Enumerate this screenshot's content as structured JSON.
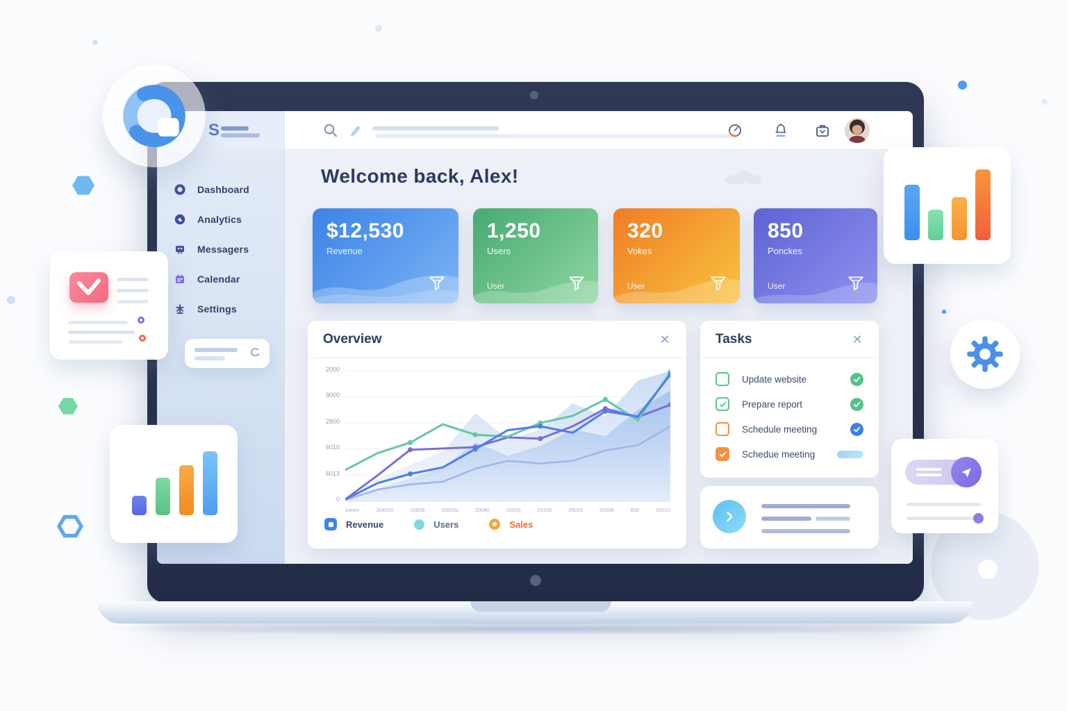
{
  "topbar": {
    "logo_text": "S"
  },
  "sidebar": {
    "items": [
      {
        "label": "Dashboard"
      },
      {
        "label": "Analytics"
      },
      {
        "label": "Messagers"
      },
      {
        "label": "Calendar"
      },
      {
        "label": "Settings"
      }
    ]
  },
  "main": {
    "heading": "Welcome back, Alex!"
  },
  "stats": [
    {
      "value": "$12,530",
      "label": "Revenue",
      "footer": "",
      "bg": "linear-gradient(135deg,#3d83e6 0%,#7ab4f5 100%)"
    },
    {
      "value": "1,250",
      "label": "Users",
      "footer": "User",
      "bg": "linear-gradient(135deg,#47aa71 0%,#8fd6a0 100%)"
    },
    {
      "value": "320",
      "label": "Vokes",
      "footer": "User",
      "bg": "linear-gradient(135deg,#f07c27 0%,#f8c43e 100%)"
    },
    {
      "value": "850",
      "label": "Ponckes",
      "footer": "User",
      "bg": "linear-gradient(135deg,#5f63d3 0%,#8e92ef 100%)"
    }
  ],
  "overview": {
    "title": "Overview",
    "close_icon": "✕",
    "legend": [
      {
        "label": "Revenue",
        "color": "#3d86ea",
        "text": "#39466b"
      },
      {
        "label": "Users",
        "color": "#7fd8dc",
        "text": "#5d6b84"
      },
      {
        "label": "Sales",
        "color": "#f5a63a",
        "text": "#f2693c"
      }
    ]
  },
  "chart_data": {
    "type": "line",
    "title": "Overview",
    "xlabel": "",
    "ylabel": "",
    "ylim": [
      0,
      2000
    ],
    "grid": true,
    "legend_position": "bottom",
    "y_ticks": [
      "2000",
      "9000",
      "2800",
      "6010",
      "6013",
      "0"
    ],
    "x_labels": [
      "2anov",
      "204000",
      "20008",
      "20010s",
      "20080",
      "20010",
      "20100",
      "20019",
      "20008",
      "600",
      "20010"
    ],
    "areas": [
      {
        "name": "background-area",
        "values": [
          0,
          350,
          560,
          760,
          1350,
          950,
          1100,
          1500,
          1300,
          1850,
          2000
        ]
      },
      {
        "name": "foreground-area",
        "values": [
          0,
          200,
          350,
          520,
          900,
          700,
          850,
          1100,
          1000,
          1400,
          1700
        ]
      }
    ],
    "series": [
      {
        "name": "Trend",
        "color": "#9fb4ea",
        "width": 2.5,
        "markers": false,
        "values": [
          20,
          180,
          260,
          300,
          500,
          620,
          580,
          620,
          780,
          860,
          1150
        ]
      },
      {
        "name": "Sales",
        "color": "#7a6fd8",
        "width": 3,
        "markers": true,
        "values": [
          30,
          400,
          790,
          810,
          830,
          980,
          960,
          1150,
          1420,
          1290,
          1480
        ]
      },
      {
        "name": "Users",
        "color": "#63c9a0",
        "width": 3,
        "markers": true,
        "values": [
          480,
          740,
          900,
          1180,
          1020,
          990,
          1200,
          1310,
          1560,
          1240,
          1980
        ]
      },
      {
        "name": "Revenue",
        "color": "#4d7df0",
        "width": 3,
        "markers": true,
        "values": [
          30,
          280,
          420,
          520,
          800,
          1090,
          1150,
          1050,
          1380,
          1300,
          1940
        ]
      }
    ]
  },
  "tasks": {
    "title": "Tasks",
    "close_icon": "✕",
    "items": [
      {
        "label": "Update website",
        "checkbox": "green-unchecked",
        "status": "green-check"
      },
      {
        "label": "Prepare report",
        "checkbox": "green-checked",
        "status": "green-check"
      },
      {
        "label": "Schedule meeting",
        "checkbox": "orange-unchecked",
        "status": "blue-check"
      },
      {
        "label": "Schedue meeting",
        "checkbox": "orange-checked",
        "status": "progress-pill"
      }
    ]
  },
  "colors": {
    "task_green": "#53c288",
    "task_orange": "#f2923e",
    "task_blue": "#3f7fe8",
    "progress_pill": "#a8d8f5",
    "card_blue": "#3d83e6",
    "card_green": "#47aa71",
    "card_orange": "#f07c27",
    "card_purple": "#5f63d3"
  },
  "icons": {
    "close": "✕",
    "search": "magnifier",
    "edit": "pencil",
    "timer": "clock-ring",
    "notifications": "bell",
    "work": "briefcase",
    "gear": "gear",
    "envelope": "mail",
    "paper_plane": "send",
    "chevron_right": "chevron",
    "funnel": "filter",
    "pie": "pie-chart",
    "bars": "bar-chart"
  }
}
